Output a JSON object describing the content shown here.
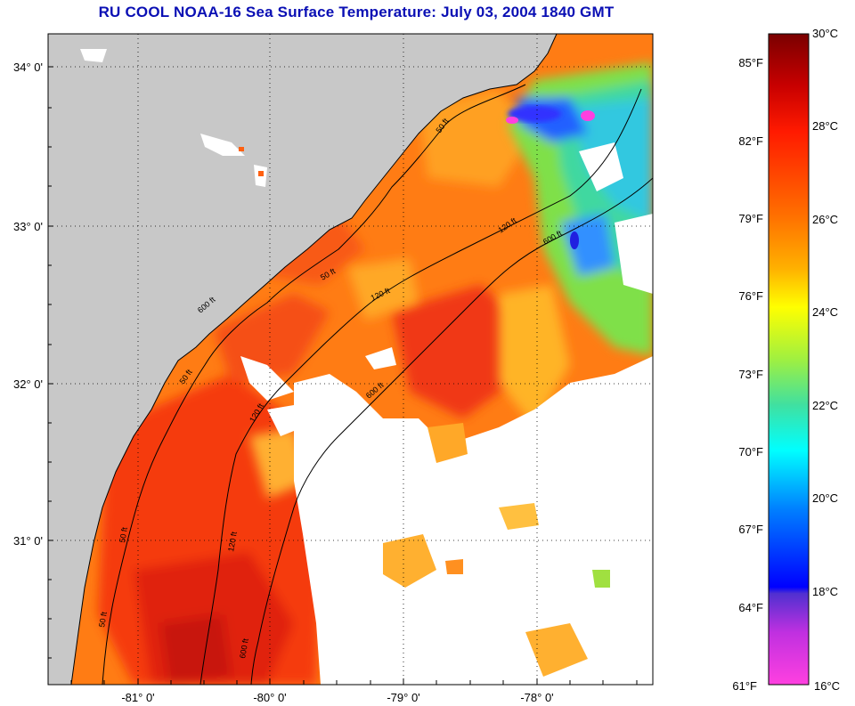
{
  "title": "RU COOL  NOAA-16  Sea Surface Temperature:  July 03, 2004 1840 GMT",
  "map": {
    "lon_labels": [
      "-81° 0'",
      "-80° 0'",
      "-79° 0'",
      "-78° 0'"
    ],
    "lat_labels": [
      "34° 0'",
      "33° 0'",
      "32° 0'",
      "31° 0'"
    ],
    "lon_range": [
      -81.67,
      -77.1
    ],
    "lat_range": [
      30.12,
      34.22
    ],
    "grid": "dotted",
    "land_color": "#c8c8c8",
    "cloud_color": "#ffffff",
    "isobath_labels": [
      "50 ft",
      "50 ft",
      "120 ft",
      "120 ft",
      "600 ft",
      "600 ft",
      "50 ft",
      "120 ft",
      "600 ft",
      "50 ft",
      "50 ft",
      "120 ft",
      "600 ft"
    ]
  },
  "colorbar": {
    "celsius_labels": [
      "30°C",
      "28°C",
      "26°C",
      "24°C",
      "22°C",
      "20°C",
      "18°C",
      "16°C"
    ],
    "fahrenheit_labels": [
      "85°F",
      "82°F",
      "79°F",
      "76°F",
      "73°F",
      "70°F",
      "67°F",
      "64°F",
      "61°F"
    ],
    "range_c": [
      16,
      30
    ]
  }
}
